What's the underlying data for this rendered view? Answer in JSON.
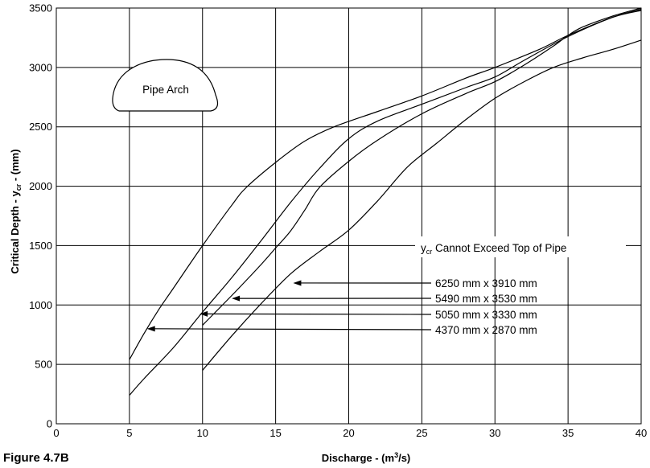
{
  "figure_label": "Figure 4.7B",
  "chart_data": {
    "type": "line",
    "xlabel": "Discharge - (m³/s)",
    "xlabel_main": "Discharge - (m",
    "xlabel_sup": "3",
    "xlabel_tail": "/s)",
    "ylabel_main": "Critical Depth - y",
    "ylabel_sub": "cr",
    "ylabel_tail": " - (mm)",
    "xlim": [
      0,
      40
    ],
    "ylim": [
      0,
      3500
    ],
    "xticks": [
      0,
      5,
      10,
      15,
      20,
      25,
      30,
      35,
      40
    ],
    "yticks": [
      0,
      500,
      1000,
      1500,
      2000,
      2500,
      3000,
      3500
    ],
    "grid": true,
    "series": [
      {
        "name": "6250 mm x 3910 mm",
        "label_at": [
          16.2,
          1185
        ],
        "x": [
          10,
          12,
          14,
          16,
          18,
          20,
          22,
          24,
          26,
          28,
          30,
          32,
          34,
          36,
          38,
          40
        ],
        "y": [
          450,
          740,
          1010,
          1260,
          1450,
          1630,
          1880,
          2160,
          2360,
          2560,
          2740,
          2880,
          3000,
          3080,
          3150,
          3230
        ]
      },
      {
        "name": "5490 mm x 3530 mm",
        "label_at": [
          12.0,
          1055
        ],
        "x": [
          10,
          12,
          14,
          15,
          16,
          17,
          18,
          20,
          22,
          25,
          28,
          30,
          32,
          34,
          35,
          36,
          38,
          40
        ],
        "y": [
          830,
          1080,
          1340,
          1480,
          1620,
          1800,
          1990,
          2210,
          2390,
          2610,
          2780,
          2880,
          3020,
          3180,
          3270,
          3340,
          3430,
          3500
        ]
      },
      {
        "name": "5050 mm x 3330 mm",
        "label_at": [
          9.8,
          925
        ],
        "x": [
          5,
          6,
          8,
          10,
          12,
          14,
          16,
          18,
          20,
          22,
          25,
          28,
          30,
          32,
          35,
          38,
          40
        ],
        "y": [
          240,
          380,
          640,
          940,
          1230,
          1540,
          1860,
          2150,
          2400,
          2550,
          2690,
          2830,
          2920,
          3060,
          3260,
          3420,
          3490
        ]
      },
      {
        "name": "4370 mm x 2870 mm",
        "label_at": [
          6.2,
          800
        ],
        "x": [
          5,
          6,
          7,
          8,
          10,
          12,
          13,
          15,
          17,
          19,
          22,
          25,
          28,
          30,
          33,
          35,
          38,
          40
        ],
        "y": [
          540,
          760,
          960,
          1140,
          1500,
          1840,
          1990,
          2200,
          2380,
          2500,
          2630,
          2760,
          2910,
          3000,
          3150,
          3270,
          3420,
          3480
        ]
      }
    ],
    "annotations": {
      "shape_label": "Pipe Arch",
      "note_main": "y",
      "note_sub": "cr",
      "note_tail": " Cannot Exceed Top of Pipe"
    }
  }
}
